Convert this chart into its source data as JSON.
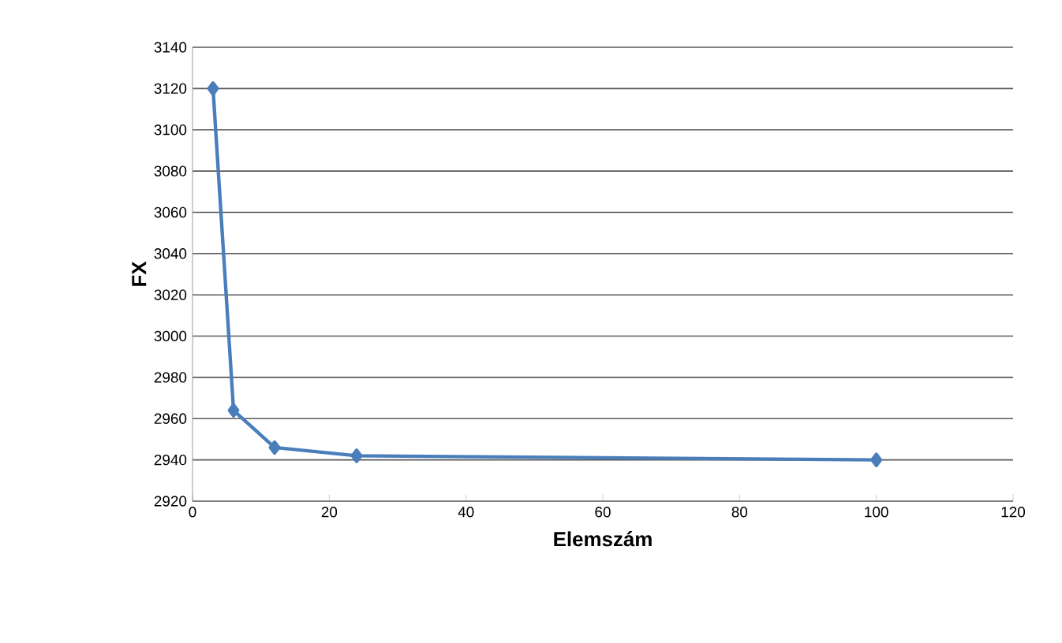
{
  "chart_data": {
    "type": "line",
    "xlabel": "Elemszám",
    "ylabel": "FX",
    "x": [
      3,
      6,
      12,
      24,
      100
    ],
    "series": [
      {
        "color": "#4a7ebb",
        "values": [
          3120,
          2964,
          2946,
          2942,
          2940
        ]
      }
    ],
    "xlim": [
      0,
      120
    ],
    "xticks": [
      0,
      20,
      40,
      60,
      80,
      100,
      120
    ],
    "ylim": [
      2920,
      3140
    ],
    "yticks": [
      2920,
      2940,
      2960,
      2980,
      3000,
      3020,
      3040,
      3060,
      3080,
      3100,
      3120,
      3140
    ],
    "grid": "y",
    "marker": "diamond",
    "line_style": "solid"
  }
}
